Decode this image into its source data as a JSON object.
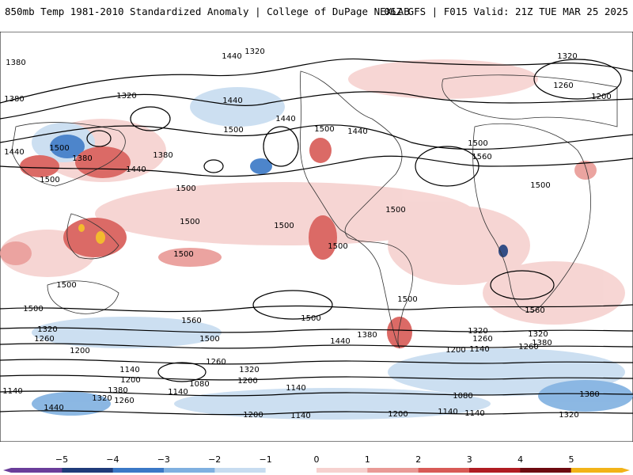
{
  "header": {
    "left_title": "850mb Temp 1981-2010 Standardized Anomaly | College of DuPage NEXLAB",
    "right_title": "06Z GFS | F015 Valid: 21Z TUE MAR 25 2025"
  },
  "contour_labels": [
    "1380",
    "1440",
    "1320",
    "1260",
    "1320",
    "1200",
    "1380",
    "1320",
    "1440",
    "1500",
    "1440",
    "1500",
    "1440",
    "1500",
    "1380",
    "1440",
    "1500",
    "1500",
    "1380",
    "1440",
    "1500",
    "1560",
    "1500",
    "1500",
    "1500",
    "1500",
    "1500",
    "1500",
    "1500",
    "1500",
    "1500",
    "1560",
    "1560",
    "1500",
    "1440",
    "1380",
    "1500",
    "1320",
    "1260",
    "1200",
    "1200",
    "1140",
    "1140",
    "1080",
    "1140",
    "1260",
    "1320",
    "1200",
    "1140",
    "1380",
    "1320",
    "1260",
    "1440",
    "1140",
    "1080",
    "1380",
    "1320",
    "1260",
    "1200",
    "1140",
    "1320",
    "1260",
    "1200",
    "1140",
    "1200",
    "1380",
    "1140",
    "1320"
  ],
  "colorbar": {
    "ticks": [
      "−5",
      "−4",
      "−3",
      "−2",
      "−1",
      "0",
      "1",
      "2",
      "3",
      "4",
      "5"
    ],
    "colors": [
      "#6a3d9a",
      "#1f3b7a",
      "#3a78c6",
      "#7fb0e0",
      "#c7dcf0",
      "#ffffff",
      "#f6d1cf",
      "#e99a96",
      "#d85a56",
      "#b01c22",
      "#6d0a10",
      "#f2b318"
    ]
  }
}
